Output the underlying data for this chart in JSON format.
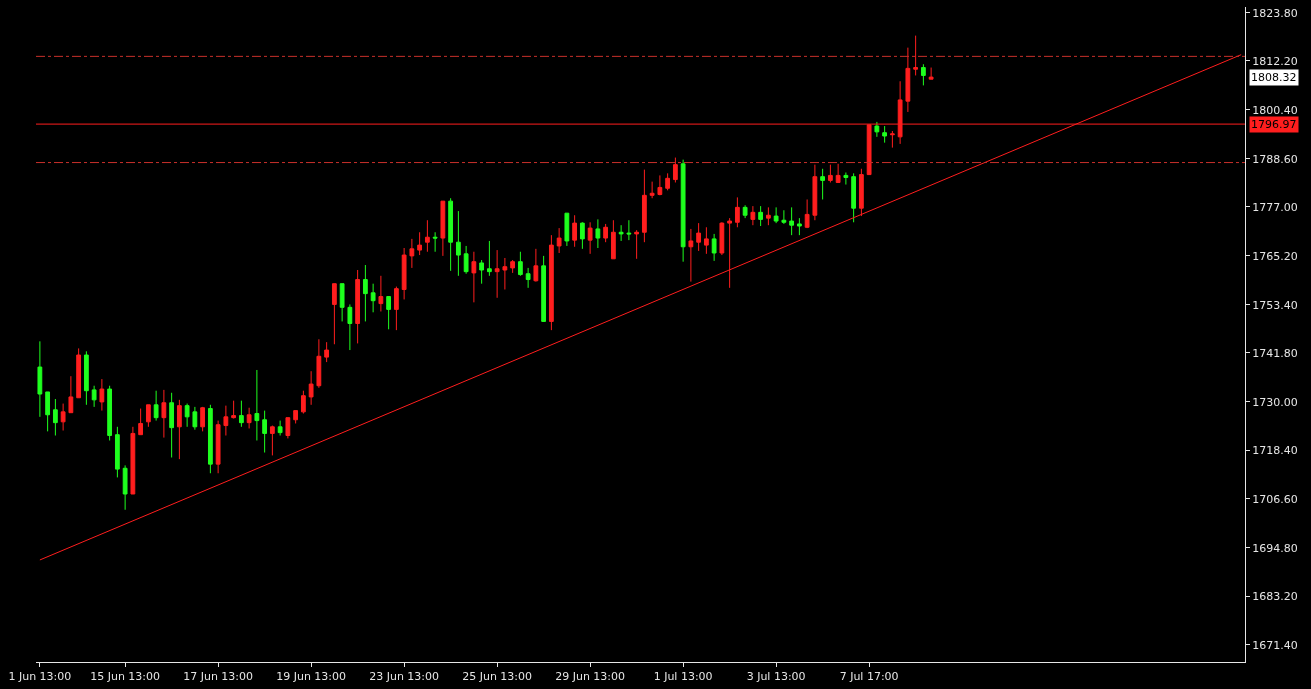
{
  "chart_data": {
    "type": "candlestick",
    "categories": [
      "1 Jun 13:00",
      null,
      null,
      null,
      null,
      null,
      null,
      null,
      null,
      null,
      null,
      "15 Jun 13:00",
      null,
      null,
      null,
      null,
      null,
      null,
      null,
      null,
      null,
      null,
      null,
      "17 Jun 13:00",
      null,
      null,
      null,
      null,
      null,
      null,
      null,
      null,
      null,
      null,
      null,
      "19 Jun 13:00",
      null,
      null,
      null,
      null,
      null,
      null,
      null,
      null,
      null,
      null,
      null,
      "23 Jun 13:00",
      null,
      null,
      null,
      null,
      null,
      null,
      null,
      null,
      null,
      null,
      null,
      "25 Jun 13:00",
      null,
      null,
      null,
      null,
      null,
      null,
      null,
      null,
      null,
      null,
      null,
      "29 Jun 13:00",
      null,
      null,
      null,
      null,
      null,
      null,
      null,
      null,
      null,
      null,
      null,
      "1 Jul 13:00",
      null,
      null,
      null,
      null,
      null,
      null,
      null,
      null,
      null,
      null,
      null,
      "3 Jul 13:00",
      null,
      null,
      null,
      null,
      null,
      null,
      null,
      null,
      null,
      null,
      null,
      "7 Jul 17:00",
      null,
      null,
      null,
      null,
      null,
      null,
      null,
      null,
      null,
      null,
      null,
      null,
      null,
      null,
      null,
      null,
      null,
      null,
      null,
      null,
      null,
      null,
      null,
      null,
      null,
      null,
      null,
      null,
      null,
      null,
      null,
      null,
      null,
      null,
      null,
      null,
      null,
      null,
      null,
      null,
      null,
      null,
      null,
      null,
      null,
      null,
      null,
      null
    ],
    "ohlc": [
      [
        1738.4,
        1744.6,
        1726.4,
        1731.9
      ],
      [
        1732.4,
        1732.4,
        1722.9,
        1726.9
      ],
      [
        1728.1,
        1730.7,
        1721.9,
        1725.0
      ],
      [
        1725.2,
        1729.6,
        1723.1,
        1727.6
      ],
      [
        1727.4,
        1736.2,
        1727.4,
        1731.2
      ],
      [
        1731.0,
        1742.9,
        1731.0,
        1741.3
      ],
      [
        1741.3,
        1742.2,
        1729.3,
        1732.7
      ],
      [
        1732.9,
        1733.9,
        1728.8,
        1730.5
      ],
      [
        1730.0,
        1735.5,
        1727.9,
        1733.1
      ],
      [
        1733.1,
        1733.9,
        1720.7,
        1721.9
      ],
      [
        1722.1,
        1724.0,
        1711.8,
        1713.8
      ],
      [
        1714.0,
        1714.7,
        1704.0,
        1707.8
      ],
      [
        1707.8,
        1724.0,
        1707.8,
        1722.4
      ],
      [
        1722.1,
        1728.4,
        1722.1,
        1724.8
      ],
      [
        1725.2,
        1729.3,
        1724.0,
        1729.3
      ],
      [
        1729.3,
        1732.7,
        1725.5,
        1726.2
      ],
      [
        1726.2,
        1732.9,
        1721.4,
        1729.8
      ],
      [
        1729.8,
        1732.2,
        1716.6,
        1723.8
      ],
      [
        1724.0,
        1730.5,
        1716.2,
        1729.1
      ],
      [
        1729.1,
        1729.6,
        1724.0,
        1726.4
      ],
      [
        1727.6,
        1728.8,
        1723.3,
        1724.0
      ],
      [
        1724.0,
        1728.8,
        1722.9,
        1728.6
      ],
      [
        1728.4,
        1729.3,
        1712.8,
        1715.0
      ],
      [
        1715.0,
        1725.5,
        1712.8,
        1724.5
      ],
      [
        1724.3,
        1729.1,
        1721.9,
        1726.4
      ],
      [
        1726.2,
        1730.3,
        1726.0,
        1726.7
      ],
      [
        1726.7,
        1730.3,
        1724.0,
        1725.0
      ],
      [
        1725.0,
        1728.6,
        1723.6,
        1726.9
      ],
      [
        1727.2,
        1737.7,
        1720.7,
        1725.5
      ],
      [
        1725.7,
        1727.9,
        1717.8,
        1722.4
      ],
      [
        1722.4,
        1724.3,
        1717.1,
        1724.0
      ],
      [
        1724.0,
        1725.5,
        1721.9,
        1722.6
      ],
      [
        1721.9,
        1726.2,
        1721.2,
        1726.2
      ],
      [
        1725.7,
        1727.9,
        1724.8,
        1727.9
      ],
      [
        1727.6,
        1732.7,
        1727.2,
        1731.5
      ],
      [
        1731.2,
        1737.4,
        1729.3,
        1734.3
      ],
      [
        1733.9,
        1745.1,
        1733.4,
        1741.0
      ],
      [
        1740.8,
        1744.4,
        1739.6,
        1742.5
      ],
      [
        1753.5,
        1758.5,
        1743.9,
        1758.5
      ],
      [
        1758.5,
        1758.5,
        1749.4,
        1752.8
      ],
      [
        1752.8,
        1753.5,
        1742.5,
        1748.9
      ],
      [
        1748.9,
        1761.8,
        1744.1,
        1759.5
      ],
      [
        1759.5,
        1763.0,
        1749.4,
        1756.1
      ],
      [
        1756.3,
        1758.5,
        1751.6,
        1754.4
      ],
      [
        1753.7,
        1760.4,
        1751.8,
        1755.4
      ],
      [
        1755.4,
        1755.4,
        1747.5,
        1752.3
      ],
      [
        1752.3,
        1757.8,
        1747.3,
        1757.3
      ],
      [
        1757.1,
        1767.1,
        1754.7,
        1765.4
      ],
      [
        1765.2,
        1769.3,
        1762.3,
        1766.9
      ],
      [
        1766.6,
        1770.9,
        1765.4,
        1767.8
      ],
      [
        1768.5,
        1773.8,
        1766.2,
        1769.7
      ],
      [
        1769.7,
        1770.9,
        1766.2,
        1769.5
      ],
      [
        1769.5,
        1778.4,
        1765.2,
        1778.4
      ],
      [
        1778.4,
        1779.1,
        1761.6,
        1768.5
      ],
      [
        1768.5,
        1776.0,
        1760.4,
        1765.4
      ],
      [
        1765.7,
        1767.6,
        1760.9,
        1761.4
      ],
      [
        1761.1,
        1766.2,
        1754.0,
        1763.8
      ],
      [
        1763.5,
        1764.2,
        1758.5,
        1761.8
      ],
      [
        1762.1,
        1768.8,
        1760.4,
        1761.4
      ],
      [
        1761.4,
        1766.6,
        1755.1,
        1762.1
      ],
      [
        1761.8,
        1764.7,
        1757.1,
        1762.6
      ],
      [
        1762.3,
        1764.2,
        1761.1,
        1763.8
      ],
      [
        1763.8,
        1766.2,
        1760.4,
        1760.7
      ],
      [
        1760.9,
        1762.3,
        1757.5,
        1759.5
      ],
      [
        1759.2,
        1766.9,
        1759.0,
        1762.8
      ],
      [
        1762.8,
        1765.2,
        1749.4,
        1749.4
      ],
      [
        1749.4,
        1770.2,
        1747.3,
        1767.8
      ],
      [
        1767.6,
        1771.9,
        1765.9,
        1769.5
      ],
      [
        1775.5,
        1775.5,
        1767.6,
        1768.8
      ],
      [
        1769.0,
        1775.0,
        1767.4,
        1773.1
      ],
      [
        1773.1,
        1773.3,
        1766.9,
        1769.3
      ],
      [
        1769.0,
        1773.3,
        1765.7,
        1771.9
      ],
      [
        1771.7,
        1774.0,
        1767.1,
        1769.5
      ],
      [
        1769.5,
        1772.9,
        1768.5,
        1772.1
      ],
      [
        1764.5,
        1773.8,
        1764.5,
        1770.9
      ],
      [
        1770.9,
        1772.6,
        1768.8,
        1770.5
      ],
      [
        1770.7,
        1773.8,
        1769.0,
        1770.5
      ],
      [
        1770.5,
        1771.4,
        1764.5,
        1770.9
      ],
      [
        1770.9,
        1786.0,
        1768.5,
        1779.8
      ],
      [
        1779.8,
        1783.1,
        1779.1,
        1780.3
      ],
      [
        1780.0,
        1784.6,
        1779.8,
        1781.7
      ],
      [
        1781.5,
        1785.1,
        1781.0,
        1783.9
      ],
      [
        1783.6,
        1788.9,
        1782.9,
        1787.2
      ],
      [
        1787.4,
        1788.4,
        1763.8,
        1767.4
      ],
      [
        1767.4,
        1771.7,
        1759.0,
        1768.8
      ],
      [
        1768.5,
        1773.1,
        1766.4,
        1770.7
      ],
      [
        1767.8,
        1772.1,
        1765.7,
        1769.3
      ],
      [
        1769.3,
        1770.5,
        1764.0,
        1765.9
      ],
      [
        1765.9,
        1773.3,
        1765.4,
        1773.1
      ],
      [
        1773.1,
        1774.3,
        1757.5,
        1773.6
      ],
      [
        1773.3,
        1779.3,
        1772.1,
        1776.9
      ],
      [
        1776.9,
        1777.4,
        1774.3,
        1775.0
      ],
      [
        1774.0,
        1777.2,
        1772.6,
        1775.7
      ],
      [
        1775.7,
        1777.2,
        1772.4,
        1774.0
      ],
      [
        1774.3,
        1776.9,
        1772.6,
        1775.0
      ],
      [
        1774.8,
        1776.9,
        1773.1,
        1773.6
      ],
      [
        1773.8,
        1776.2,
        1772.9,
        1773.3
      ],
      [
        1773.6,
        1776.9,
        1770.2,
        1772.6
      ],
      [
        1772.9,
        1774.3,
        1770.2,
        1772.4
      ],
      [
        1772.1,
        1778.8,
        1771.9,
        1775.2
      ],
      [
        1775.0,
        1787.2,
        1773.8,
        1784.3
      ],
      [
        1784.3,
        1786.2,
        1778.8,
        1783.4
      ],
      [
        1783.4,
        1787.2,
        1782.9,
        1784.6
      ],
      [
        1782.9,
        1787.4,
        1782.9,
        1784.6
      ],
      [
        1784.6,
        1785.3,
        1782.4,
        1784.1
      ],
      [
        1784.3,
        1785.1,
        1773.3,
        1776.7
      ],
      [
        1776.7,
        1786.2,
        1774.8,
        1784.8
      ],
      [
        1784.8,
        1796.8,
        1784.8,
        1796.8
      ],
      [
        1796.5,
        1797.5,
        1793.9,
        1795.1
      ],
      [
        1794.9,
        1796.5,
        1792.5,
        1794.1
      ],
      [
        1794.4,
        1795.3,
        1791.3,
        1794.6
      ],
      [
        1793.9,
        1807.3,
        1792.2,
        1802.8
      ],
      [
        1802.5,
        1815.4,
        1799.9,
        1810.4
      ],
      [
        1810.2,
        1818.3,
        1808.7,
        1810.6
      ],
      [
        1810.6,
        1811.4,
        1806.3,
        1808.7
      ],
      [
        1807.8,
        1810.6,
        1807.8,
        1808.3
      ],
      null,
      null,
      null,
      null,
      null,
      null,
      null,
      null,
      null,
      null,
      null,
      null,
      null,
      null,
      null,
      null,
      null,
      null,
      null,
      null,
      null,
      null,
      null,
      null,
      null,
      null,
      null,
      null,
      null,
      null,
      null,
      null,
      null,
      null,
      null,
      null,
      null,
      null,
      null,
      null
    ],
    "colors": [
      "#1eff1e",
      "#1eff1e",
      "#1eff1e",
      "#ff1e1e",
      "#ff1e1e",
      "#ff1e1e",
      "#1eff1e",
      "#1eff1e",
      "#ff1e1e",
      "#1eff1e",
      "#1eff1e",
      "#1eff1e",
      "#ff1e1e",
      "#ff1e1e",
      "#ff1e1e",
      "#1eff1e",
      "#ff1e1e",
      "#1eff1e",
      "#ff1e1e",
      "#1eff1e",
      "#1eff1e",
      "#ff1e1e",
      "#1eff1e",
      "#ff1e1e",
      "#ff1e1e",
      "#ff1e1e",
      "#1eff1e",
      "#ff1e1e",
      "#1eff1e",
      "#1eff1e",
      "#ff1e1e",
      "#1eff1e",
      "#ff1e1e",
      "#ff1e1e",
      "#ff1e1e",
      "#ff1e1e",
      "#ff1e1e",
      "#ff1e1e",
      "#ff1e1e",
      "#1eff1e",
      "#1eff1e",
      "#ff1e1e",
      "#1eff1e",
      "#1eff1e",
      "#ff1e1e",
      "#1eff1e",
      "#ff1e1e",
      "#ff1e1e",
      "#ff1e1e",
      "#ff1e1e",
      "#ff1e1e",
      "#1eff1e",
      "#ff1e1e",
      "#1eff1e",
      "#1eff1e",
      "#1eff1e",
      "#ff1e1e",
      "#1eff1e",
      "#1eff1e",
      "#ff1e1e",
      "#ff1e1e",
      "#ff1e1e",
      "#1eff1e",
      "#1eff1e",
      "#ff1e1e",
      "#1eff1e",
      "#ff1e1e",
      "#ff1e1e",
      "#1eff1e",
      "#ff1e1e",
      "#1eff1e",
      "#ff1e1e",
      "#1eff1e",
      "#ff1e1e",
      "#ff1e1e",
      "#1eff1e",
      "#1eff1e",
      "#ff1e1e",
      "#ff1e1e",
      "#ff1e1e",
      "#ff1e1e",
      "#ff1e1e",
      "#ff1e1e",
      "#1eff1e",
      "#ff1e1e",
      "#ff1e1e",
      "#ff1e1e",
      "#1eff1e",
      "#ff1e1e",
      "#ff1e1e",
      "#ff1e1e",
      "#1eff1e",
      "#ff1e1e",
      "#1eff1e",
      "#ff1e1e",
      "#1eff1e",
      "#1eff1e",
      "#1eff1e",
      "#1eff1e",
      "#ff1e1e",
      "#ff1e1e",
      "#1eff1e",
      "#ff1e1e",
      "#ff1e1e",
      "#1eff1e",
      "#1eff1e",
      "#ff1e1e",
      "#ff1e1e",
      "#1eff1e",
      "#1eff1e",
      "#ff1e1e",
      "#ff1e1e",
      "#ff1e1e",
      "#ff1e1e",
      "#1eff1e",
      "#ff1e1e",
      null,
      null,
      null,
      null,
      null,
      null,
      null,
      null,
      null,
      null,
      null,
      null,
      null,
      null,
      null,
      null,
      null,
      null,
      null,
      null,
      null,
      null,
      null,
      null,
      null,
      null,
      null,
      null,
      null,
      null,
      null,
      null,
      null,
      null,
      null,
      null,
      null,
      null,
      null,
      null
    ],
    "series": [
      {
        "type": "line",
        "color": "#ff1e1e",
        "values": [
          1691.9,
          null,
          null,
          null,
          null,
          null,
          null,
          null,
          null,
          null,
          null,
          null,
          null,
          null,
          null,
          null,
          null,
          null,
          null,
          null,
          null,
          null,
          null,
          null,
          null,
          null,
          null,
          null,
          null,
          null,
          null,
          null,
          null,
          null,
          null,
          null,
          null,
          null,
          null,
          null,
          null,
          null,
          null,
          null,
          null,
          null,
          null,
          null,
          null,
          null,
          null,
          null,
          null,
          null,
          null,
          null,
          null,
          null,
          null,
          null,
          null,
          null,
          null,
          null,
          null,
          null,
          null,
          null,
          null,
          null,
          null,
          null,
          null,
          null,
          null,
          null,
          null,
          null,
          null,
          null,
          null,
          null,
          null,
          null,
          null,
          null,
          null,
          null,
          null,
          null,
          null,
          null,
          null,
          null,
          null,
          null,
          null,
          null,
          null,
          null,
          null,
          null,
          null,
          null,
          null,
          null,
          null,
          null,
          null,
          null,
          null,
          null,
          null,
          null,
          null,
          null,
          null,
          null,
          null,
          null,
          null,
          null,
          null,
          null,
          null,
          null,
          null,
          null,
          null,
          null,
          null,
          null,
          null,
          null,
          null,
          null,
          null,
          null,
          null,
          null,
          null,
          null,
          null,
          null,
          null,
          null,
          null,
          null,
          null,
          null,
          null,
          null,
          null,
          null,
          null,
          1813.7
        ]
      }
    ],
    "ylim": [
      1667.3,
      1825.2
    ],
    "yticks": [
      {
        "value": 1823.8,
        "label": "1823.80"
      },
      {
        "value": 1812.2,
        "label": "1812.20"
      },
      {
        "value": 1800.4,
        "label": "1800.40"
      },
      {
        "value": 1788.6,
        "label": "1788.60"
      },
      {
        "value": 1777.0,
        "label": "1777.00"
      },
      {
        "value": 1765.2,
        "label": "1765.20"
      },
      {
        "value": 1753.4,
        "label": "1753.40"
      },
      {
        "value": 1741.8,
        "label": "1741.80"
      },
      {
        "value": 1730.0,
        "label": "1730.00"
      },
      {
        "value": 1718.4,
        "label": "1718.40"
      },
      {
        "value": 1706.6,
        "label": "1706.60"
      },
      {
        "value": 1694.8,
        "label": "1694.80"
      },
      {
        "value": 1683.2,
        "label": "1683.20"
      },
      {
        "value": 1671.4,
        "label": "1671.40"
      }
    ],
    "ref_lines": [
      {
        "axis": "y",
        "value": 1813.3,
        "color": "#c8302a",
        "line_style": "dashed"
      },
      {
        "axis": "y",
        "value": 1796.97,
        "label": "1796.97",
        "color": "#ff1e1e",
        "line_style": "solid"
      },
      {
        "axis": "y",
        "value": 1787.7,
        "color": "#c8302a",
        "line_style": "dashed"
      }
    ],
    "annotations": [
      "1808.32"
    ],
    "grid": false
  }
}
